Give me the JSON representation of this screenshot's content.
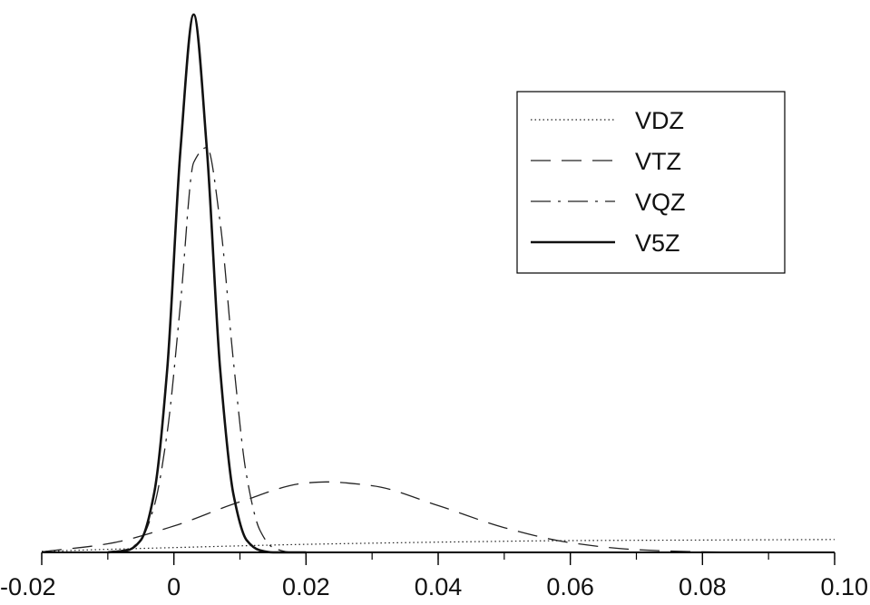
{
  "chart_data": {
    "type": "line",
    "title": "",
    "xlabel": "",
    "ylabel": "",
    "xlim": [
      -0.02,
      0.1
    ],
    "ylim": [
      0,
      1.0
    ],
    "x_ticks": [
      "-0.02",
      "0",
      "0.02",
      "0.04",
      "0.06",
      "0.08",
      "0.10"
    ],
    "x_tick_values": [
      -0.02,
      0,
      0.02,
      0.04,
      0.06,
      0.08,
      0.1
    ],
    "x_minor_tick_step": 0.01,
    "grid": false,
    "legend_position": "top-right",
    "series": [
      {
        "name": "VDZ",
        "style": "dotted",
        "color": "#222222",
        "x": [
          -0.02,
          0.0,
          0.02,
          0.04,
          0.06,
          0.08,
          0.1
        ],
        "y": [
          0.002,
          0.009,
          0.015,
          0.019,
          0.022,
          0.023,
          0.024
        ]
      },
      {
        "name": "VTZ",
        "style": "dashed",
        "color": "#222222",
        "x": [
          -0.02,
          -0.01,
          0.0,
          0.01,
          0.02,
          0.023,
          0.03,
          0.04,
          0.05,
          0.06,
          0.07,
          0.08,
          0.09,
          0.1
        ],
        "y": [
          0.001,
          0.016,
          0.049,
          0.094,
          0.129,
          0.131,
          0.124,
          0.087,
          0.046,
          0.018,
          0.005,
          0.001,
          0.0,
          0.0
        ]
      },
      {
        "name": "VQZ",
        "style": "dashdot",
        "color": "#222222",
        "x": [
          -0.01,
          -0.007,
          -0.005,
          -0.003,
          -0.001,
          0.001,
          0.003,
          0.005,
          0.007,
          0.009,
          0.011,
          0.013,
          0.015,
          0.018,
          0.02,
          0.03
        ],
        "y": [
          0.0,
          0.006,
          0.024,
          0.085,
          0.224,
          0.462,
          0.725,
          0.753,
          0.614,
          0.357,
          0.143,
          0.042,
          0.009,
          0.0,
          0.0,
          0.0
        ]
      },
      {
        "name": "V5Z",
        "style": "solid",
        "color": "#111111",
        "x": [
          -0.01,
          -0.007,
          -0.005,
          -0.003,
          -0.001,
          0.001,
          0.003,
          0.005,
          0.007,
          0.009,
          0.011,
          0.013,
          0.015,
          0.02
        ],
        "y": [
          0.0,
          0.004,
          0.023,
          0.109,
          0.342,
          0.748,
          1.0,
          0.748,
          0.342,
          0.109,
          0.023,
          0.004,
          0.0,
          0.0
        ]
      }
    ]
  }
}
